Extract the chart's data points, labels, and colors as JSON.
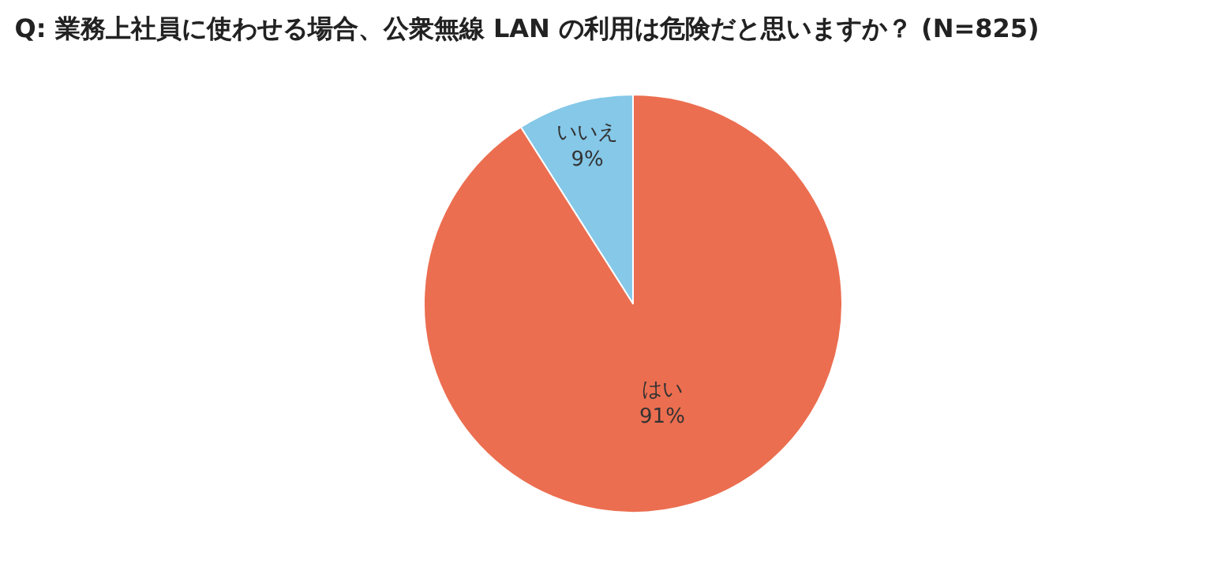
{
  "chart_data": {
    "type": "pie",
    "title": "Q: 業務上社員に使わせる場合、公衆無線 LAN の利用は危険だと思いますか？ (N=825)",
    "categories": [
      "はい",
      "いいえ"
    ],
    "values": [
      91,
      9
    ],
    "value_labels": [
      "91%",
      "9%"
    ],
    "colors": [
      "#ec6e50",
      "#85c8e8"
    ],
    "legend": false
  }
}
